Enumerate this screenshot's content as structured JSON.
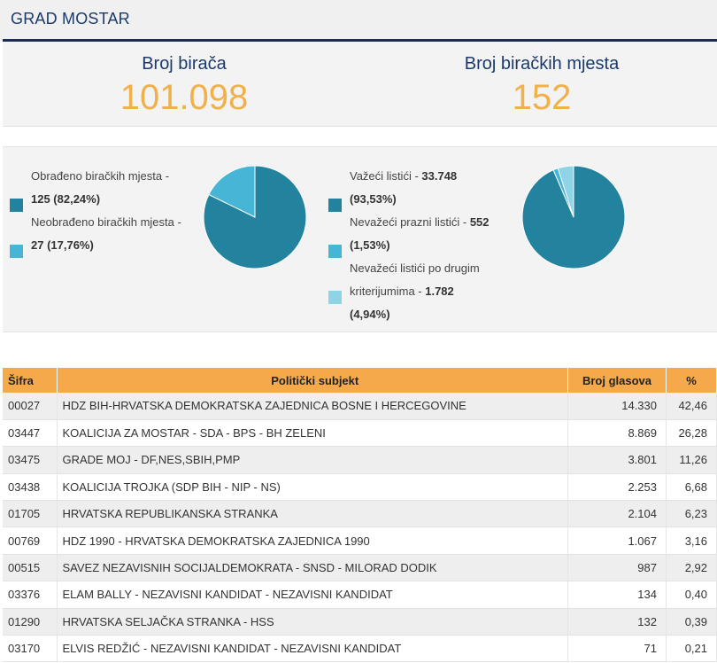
{
  "header": {
    "title": "GRAD MOSTAR"
  },
  "stats": {
    "voters_label": "Broj birača",
    "voters_value": "101.098",
    "stations_label": "Broj biračkih mjesta",
    "stations_value": "152"
  },
  "processing": {
    "processed_text": "Obrađeno biračkih mjesta -",
    "processed_value": "125 (82,24%)",
    "unprocessed_text": "Neobrađeno biračkih mjesta -",
    "unprocessed_value": "27 (17,76%)",
    "shares": [
      82.24,
      17.76
    ],
    "colors": [
      "#23839e",
      "#47b5d6"
    ]
  },
  "ballots": {
    "valid_text": "Važeći listići - ",
    "valid_value": "33.748",
    "valid_pct": "(93,53%)",
    "blank_text": "Nevažeći prazni listići - ",
    "blank_value": "552",
    "blank_pct": "(1,53%)",
    "other_text_1": "Nevažeći listići po drugim",
    "other_text_2": "kriterijumima - ",
    "other_value": "1.782",
    "other_pct": "(4,94%)",
    "shares": [
      93.53,
      1.53,
      4.94
    ],
    "colors": [
      "#23839e",
      "#47b5d6",
      "#8fd3e6"
    ]
  },
  "table": {
    "headers": {
      "code": "Šifra",
      "name": "Politički subjekt",
      "votes": "Broj glasova",
      "pct": "%"
    },
    "rows": [
      {
        "code": "00027",
        "name": "HDZ BIH-HRVATSKA DEMOKRATSKA ZAJEDNICA BOSNE I HERCEGOVINE",
        "votes": "14.330",
        "pct": "42,46"
      },
      {
        "code": "03447",
        "name": "KOALICIJA ZA MOSTAR - SDA - BPS - BH ZELENI",
        "votes": "8.869",
        "pct": "26,28"
      },
      {
        "code": "03475",
        "name": "GRADE MOJ - DF,NES,SBIH,PMP",
        "votes": "3.801",
        "pct": "11,26"
      },
      {
        "code": "03438",
        "name": "KOALICIJA TROJKA (SDP BIH - NIP - NS)",
        "votes": "2.253",
        "pct": "6,68"
      },
      {
        "code": "01705",
        "name": "HRVATSKA REPUBLIKANSKA STRANKA",
        "votes": "2.104",
        "pct": "6,23"
      },
      {
        "code": "00769",
        "name": "HDZ 1990 - HRVATSKA DEMOKRATSKA ZAJEDNICA 1990",
        "votes": "1.067",
        "pct": "3,16"
      },
      {
        "code": "00515",
        "name": "SAVEZ NEZAVISNIH SOCIJALDEMOKRATA - SNSD - MILORAD DODIK",
        "votes": "987",
        "pct": "2,92"
      },
      {
        "code": "03376",
        "name": "ELAM BALLY - NEZAVISNI KANDIDAT - NEZAVISNI KANDIDAT",
        "votes": "134",
        "pct": "0,40"
      },
      {
        "code": "01290",
        "name": "HRVATSKA SELJAČKA STRANKA - HSS",
        "votes": "132",
        "pct": "0,39"
      },
      {
        "code": "03170",
        "name": "ELVIS REDŽIĆ - NEZAVISNI KANDIDAT - NEZAVISNI KANDIDAT",
        "votes": "71",
        "pct": "0,21"
      }
    ]
  }
}
